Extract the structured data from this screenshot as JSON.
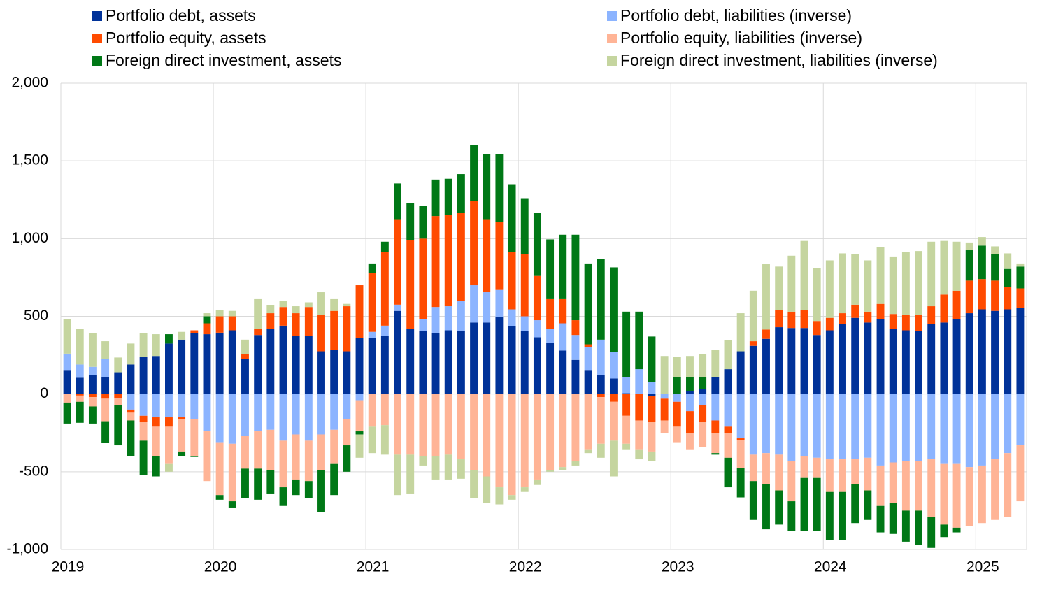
{
  "chart_data": {
    "type": "stacked_bar",
    "categories": [
      "2019",
      null,
      null,
      null,
      null,
      null,
      null,
      null,
      null,
      null,
      null,
      null,
      "2020",
      null,
      null,
      null,
      null,
      null,
      null,
      null,
      null,
      null,
      null,
      null,
      "2021",
      null,
      null,
      null,
      null,
      null,
      null,
      null,
      null,
      null,
      null,
      null,
      "2022",
      null,
      null,
      null,
      null,
      null,
      null,
      null,
      null,
      null,
      null,
      null,
      "2023",
      null,
      null,
      null,
      null,
      null,
      null,
      null,
      null,
      null,
      null,
      null,
      "2024",
      null,
      null,
      null,
      null,
      null,
      null,
      null,
      null,
      null,
      null,
      null,
      "2025",
      null,
      null,
      null
    ],
    "series": [
      {
        "name": "Portfolio debt, assets",
        "color": "#003299",
        "values": [
          155,
          105,
          120,
          110,
          140,
          190,
          240,
          245,
          325,
          350,
          390,
          385,
          395,
          410,
          225,
          380,
          420,
          440,
          375,
          375,
          275,
          285,
          275,
          360,
          360,
          375,
          535,
          420,
          405,
          390,
          410,
          405,
          460,
          460,
          495,
          435,
          405,
          365,
          330,
          280,
          220,
          155,
          120,
          100,
          5,
          0,
          -15,
          0,
          0,
          20,
          30,
          110,
          160,
          275,
          310,
          355,
          430,
          425,
          425,
          380,
          410,
          450,
          490,
          460,
          480,
          420,
          410,
          405,
          450,
          460,
          480,
          520,
          545,
          535,
          545,
          555
        ]
      },
      {
        "name": "Portfolio debt, liabilities (inverse)",
        "color": "#8cb4ff",
        "values": [
          105,
          85,
          55,
          115,
          0,
          -100,
          -140,
          -150,
          -150,
          -150,
          -160,
          -240,
          -310,
          -320,
          -270,
          -240,
          -230,
          -300,
          -260,
          -300,
          -260,
          -230,
          -160,
          -40,
          40,
          65,
          40,
          0,
          75,
          170,
          155,
          195,
          240,
          195,
          175,
          110,
          95,
          110,
          90,
          175,
          160,
          145,
          230,
          170,
          105,
          160,
          75,
          -30,
          -50,
          -110,
          -70,
          -170,
          -210,
          -285,
          -390,
          -380,
          -390,
          -430,
          -400,
          -410,
          -420,
          -420,
          -420,
          -410,
          -460,
          -440,
          -430,
          -430,
          -420,
          -450,
          -450,
          -470,
          -460,
          -420,
          -380,
          -330
        ]
      },
      {
        "name": "Portfolio equity, assets",
        "color": "#ff4b00",
        "values": [
          0,
          -10,
          -20,
          -30,
          -25,
          -20,
          -40,
          -60,
          -60,
          -10,
          20,
          70,
          105,
          90,
          30,
          40,
          100,
          120,
          145,
          185,
          235,
          250,
          290,
          340,
          380,
          475,
          550,
          570,
          520,
          585,
          585,
          565,
          540,
          470,
          435,
          370,
          400,
          285,
          195,
          160,
          95,
          20,
          -20,
          -50,
          -140,
          -170,
          -165,
          -140,
          -160,
          -140,
          -110,
          -80,
          -40,
          -10,
          30,
          60,
          110,
          105,
          115,
          90,
          80,
          70,
          85,
          70,
          100,
          95,
          100,
          105,
          115,
          180,
          185,
          210,
          195,
          195,
          145,
          125
        ]
      },
      {
        "name": "Portfolio equity, liabilities (inverse)",
        "color": "#ffb496",
        "values": [
          -55,
          -40,
          -60,
          -145,
          -45,
          -50,
          -120,
          -190,
          -240,
          -210,
          -240,
          -320,
          -340,
          -370,
          -210,
          -240,
          -260,
          -300,
          -290,
          -260,
          -230,
          -220,
          -170,
          -200,
          -210,
          -200,
          -390,
          -390,
          -400,
          -400,
          -390,
          -420,
          -490,
          -530,
          -600,
          -650,
          -600,
          -550,
          -490,
          -470,
          -430,
          -360,
          -300,
          -250,
          -180,
          -190,
          -190,
          -80,
          -100,
          -110,
          -160,
          -130,
          -160,
          -180,
          -170,
          -200,
          -230,
          -260,
          -140,
          -130,
          -210,
          -210,
          -160,
          -210,
          -260,
          -260,
          -320,
          -320,
          -370,
          -390,
          -410,
          -380,
          -370,
          -390,
          -410,
          -360
        ]
      },
      {
        "name": "Foreign direct investment, assets",
        "color": "#007816",
        "values": [
          -135,
          -135,
          -110,
          -140,
          -260,
          -230,
          -220,
          -130,
          60,
          -30,
          -5,
          45,
          -30,
          -40,
          -190,
          -200,
          -150,
          -120,
          -100,
          -110,
          -270,
          -200,
          -170,
          -20,
          60,
          65,
          230,
          240,
          210,
          235,
          235,
          250,
          360,
          420,
          440,
          435,
          360,
          405,
          380,
          410,
          550,
          520,
          520,
          545,
          420,
          370,
          295,
          0,
          110,
          90,
          80,
          -10,
          -190,
          -190,
          -250,
          -290,
          -220,
          -190,
          -340,
          -340,
          -310,
          -310,
          -250,
          -190,
          -170,
          -200,
          -200,
          -220,
          -200,
          -80,
          -30,
          195,
          215,
          170,
          115,
          140
        ]
      },
      {
        "name": "Foreign direct investment, liabilities (inverse)",
        "color": "#c5d59f",
        "values": [
          220,
          230,
          215,
          115,
          95,
          135,
          150,
          140,
          -50,
          50,
          0,
          20,
          40,
          35,
          95,
          195,
          50,
          40,
          45,
          30,
          145,
          80,
          15,
          -150,
          -170,
          -190,
          -260,
          -250,
          -60,
          -150,
          -160,
          -125,
          -180,
          -170,
          -110,
          -30,
          -30,
          -35,
          -10,
          -20,
          -30,
          -20,
          -90,
          -230,
          -40,
          -60,
          -60,
          245,
          130,
          135,
          145,
          175,
          185,
          245,
          325,
          420,
          280,
          360,
          445,
          340,
          370,
          385,
          325,
          330,
          365,
          370,
          405,
          410,
          415,
          345,
          315,
          50,
          55,
          50,
          100,
          20
        ]
      }
    ],
    "ylim": [
      -1000,
      2000
    ],
    "yticks": [
      {
        "value": -1000,
        "label": "-1,000"
      },
      -500,
      0,
      500,
      {
        "value": 1000,
        "label": "1,000"
      },
      {
        "value": 1500,
        "label": "1,500"
      },
      {
        "value": 2000,
        "label": "2,000"
      }
    ],
    "grid": true
  }
}
